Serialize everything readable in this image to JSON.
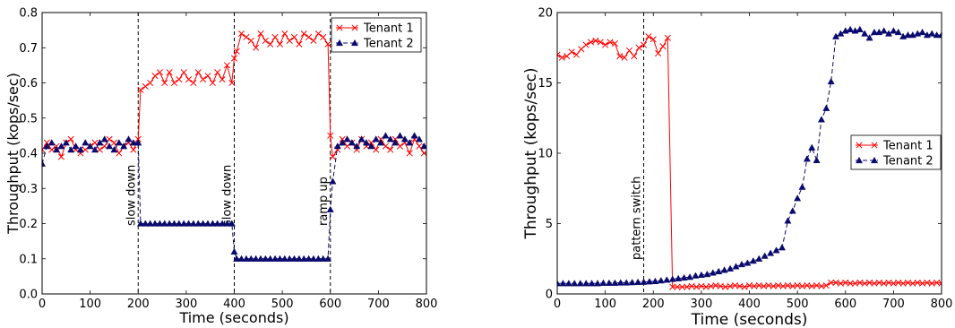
{
  "colors": {
    "tenant1": "#ff0000",
    "tenant2": "#0a0a6e"
  },
  "chart_data": [
    {
      "type": "line",
      "xlabel": "Time (seconds)",
      "ylabel": "Throughput (kops/sec)",
      "xlim": [
        0,
        800
      ],
      "ylim": [
        0,
        0.8
      ],
      "xticks": [
        "0",
        "100",
        "200",
        "300",
        "400",
        "500",
        "600",
        "700",
        "800"
      ],
      "yticks": [
        "0.0",
        "0.1",
        "0.2",
        "0.3",
        "0.4",
        "0.5",
        "0.6",
        "0.7",
        "0.8"
      ],
      "legend_position": "top-right",
      "annotations": [
        {
          "x": 200,
          "text": "slow down"
        },
        {
          "x": 400,
          "text": "slow down"
        },
        {
          "x": 600,
          "text": "ramp up"
        }
      ],
      "series": [
        {
          "name": "Tenant 1",
          "marker": "x",
          "x": [
            0,
            10,
            20,
            30,
            40,
            50,
            60,
            70,
            80,
            90,
            100,
            110,
            120,
            130,
            140,
            150,
            160,
            170,
            180,
            190,
            200,
            205,
            215,
            225,
            235,
            245,
            255,
            265,
            275,
            285,
            295,
            305,
            315,
            325,
            335,
            345,
            355,
            365,
            375,
            385,
            395,
            400,
            405,
            415,
            425,
            435,
            445,
            455,
            465,
            475,
            485,
            495,
            505,
            515,
            525,
            535,
            545,
            555,
            565,
            575,
            585,
            595,
            600,
            605,
            615,
            625,
            635,
            645,
            655,
            665,
            675,
            685,
            695,
            705,
            715,
            725,
            735,
            745,
            755,
            765,
            775,
            785,
            795
          ],
          "values": [
            0.41,
            0.43,
            0.41,
            0.42,
            0.39,
            0.43,
            0.44,
            0.41,
            0.4,
            0.41,
            0.42,
            0.43,
            0.41,
            0.42,
            0.44,
            0.43,
            0.4,
            0.42,
            0.43,
            0.41,
            0.44,
            0.58,
            0.59,
            0.6,
            0.62,
            0.63,
            0.6,
            0.63,
            0.6,
            0.61,
            0.63,
            0.61,
            0.6,
            0.63,
            0.61,
            0.62,
            0.6,
            0.63,
            0.61,
            0.65,
            0.6,
            0.67,
            0.69,
            0.74,
            0.73,
            0.72,
            0.7,
            0.74,
            0.72,
            0.71,
            0.73,
            0.71,
            0.74,
            0.72,
            0.73,
            0.71,
            0.74,
            0.73,
            0.72,
            0.74,
            0.73,
            0.71,
            0.45,
            0.39,
            0.41,
            0.44,
            0.42,
            0.43,
            0.41,
            0.44,
            0.42,
            0.43,
            0.41,
            0.44,
            0.42,
            0.41,
            0.44,
            0.42,
            0.43,
            0.4,
            0.44,
            0.42,
            0.4
          ]
        },
        {
          "name": "Tenant 2",
          "marker": "triangle",
          "x": [
            0,
            10,
            20,
            30,
            40,
            50,
            60,
            70,
            80,
            90,
            100,
            110,
            120,
            130,
            140,
            150,
            160,
            170,
            180,
            190,
            200,
            205,
            215,
            225,
            235,
            245,
            255,
            265,
            275,
            285,
            295,
            305,
            315,
            325,
            335,
            345,
            355,
            365,
            375,
            385,
            395,
            400,
            405,
            415,
            425,
            435,
            445,
            455,
            465,
            475,
            485,
            495,
            505,
            515,
            525,
            535,
            545,
            555,
            565,
            575,
            585,
            595,
            600,
            605,
            615,
            625,
            635,
            645,
            655,
            665,
            675,
            685,
            695,
            705,
            715,
            725,
            735,
            745,
            755,
            765,
            775,
            785,
            795
          ],
          "values": [
            0.37,
            0.42,
            0.43,
            0.41,
            0.42,
            0.43,
            0.41,
            0.42,
            0.41,
            0.43,
            0.42,
            0.41,
            0.43,
            0.44,
            0.42,
            0.41,
            0.43,
            0.42,
            0.44,
            0.43,
            0.43,
            0.2,
            0.2,
            0.2,
            0.2,
            0.2,
            0.2,
            0.2,
            0.2,
            0.2,
            0.2,
            0.2,
            0.2,
            0.2,
            0.2,
            0.2,
            0.2,
            0.2,
            0.2,
            0.2,
            0.2,
            0.12,
            0.1,
            0.1,
            0.1,
            0.1,
            0.1,
            0.1,
            0.1,
            0.1,
            0.1,
            0.1,
            0.1,
            0.1,
            0.1,
            0.1,
            0.1,
            0.1,
            0.1,
            0.1,
            0.1,
            0.1,
            0.24,
            0.32,
            0.42,
            0.43,
            0.44,
            0.43,
            0.42,
            0.44,
            0.43,
            0.42,
            0.44,
            0.43,
            0.45,
            0.44,
            0.43,
            0.45,
            0.44,
            0.43,
            0.45,
            0.44,
            0.42
          ]
        }
      ]
    },
    {
      "type": "line",
      "xlabel": "Time (seconds)",
      "ylabel": "Throughput (kops/sec)",
      "xlim": [
        0,
        800
      ],
      "ylim": [
        0,
        20
      ],
      "xticks": [
        "0",
        "100",
        "200",
        "300",
        "400",
        "500",
        "600",
        "700",
        "800"
      ],
      "yticks": [
        "0",
        "5",
        "10",
        "15",
        "20"
      ],
      "legend_position": "center-right",
      "annotations": [
        {
          "x": 180,
          "text": "pattern switch"
        }
      ],
      "series": [
        {
          "name": "Tenant 1",
          "marker": "x",
          "x": [
            0,
            10,
            20,
            30,
            40,
            50,
            60,
            70,
            80,
            90,
            100,
            110,
            120,
            130,
            140,
            150,
            160,
            170,
            180,
            190,
            200,
            210,
            220,
            230,
            240,
            250,
            260,
            270,
            280,
            290,
            300,
            310,
            320,
            330,
            340,
            350,
            360,
            370,
            380,
            390,
            400,
            410,
            420,
            430,
            440,
            450,
            460,
            470,
            480,
            490,
            500,
            510,
            520,
            530,
            540,
            550,
            560,
            570,
            580,
            590,
            600,
            610,
            620,
            630,
            640,
            650,
            660,
            670,
            680,
            690,
            700,
            710,
            720,
            730,
            740,
            750,
            760,
            770,
            780,
            790,
            800
          ],
          "values": [
            17.0,
            16.8,
            16.9,
            17.2,
            17.0,
            17.4,
            17.7,
            17.9,
            18.0,
            17.9,
            17.7,
            17.9,
            17.8,
            16.9,
            16.8,
            17.3,
            16.9,
            17.5,
            17.7,
            18.3,
            18.1,
            17.1,
            17.6,
            18.2,
            0.5,
            0.5,
            0.5,
            0.5,
            0.55,
            0.5,
            0.55,
            0.5,
            0.55,
            0.6,
            0.55,
            0.5,
            0.55,
            0.6,
            0.55,
            0.5,
            0.6,
            0.55,
            0.6,
            0.55,
            0.6,
            0.55,
            0.6,
            0.55,
            0.6,
            0.55,
            0.6,
            0.55,
            0.6,
            0.55,
            0.6,
            0.55,
            0.6,
            0.8,
            0.8,
            0.75,
            0.8,
            0.75,
            0.75,
            0.8,
            0.75,
            0.8,
            0.75,
            0.8,
            0.75,
            0.8,
            0.75,
            0.8,
            0.75,
            0.8,
            0.75,
            0.8,
            0.75,
            0.8,
            0.75,
            0.8,
            0.75
          ]
        },
        {
          "name": "Tenant 2",
          "marker": "triangle",
          "x": [
            0,
            12,
            24,
            36,
            48,
            60,
            72,
            84,
            96,
            108,
            120,
            132,
            144,
            156,
            168,
            180,
            192,
            204,
            216,
            228,
            240,
            252,
            264,
            276,
            288,
            300,
            312,
            324,
            336,
            348,
            360,
            372,
            384,
            396,
            408,
            420,
            432,
            444,
            456,
            468,
            480,
            490,
            500,
            510,
            520,
            530,
            540,
            550,
            560,
            570,
            580,
            590,
            600,
            610,
            620,
            630,
            640,
            650,
            660,
            670,
            680,
            690,
            700,
            710,
            720,
            730,
            740,
            750,
            760,
            770,
            780,
            790,
            800
          ],
          "values": [
            0.75,
            0.75,
            0.75,
            0.75,
            0.75,
            0.75,
            0.75,
            0.75,
            0.78,
            0.78,
            0.78,
            0.8,
            0.8,
            0.82,
            0.84,
            0.85,
            0.88,
            0.9,
            0.95,
            1.0,
            1.05,
            1.1,
            1.15,
            1.2,
            1.3,
            1.35,
            1.4,
            1.5,
            1.6,
            1.7,
            1.8,
            1.95,
            2.1,
            2.2,
            2.35,
            2.5,
            2.7,
            2.9,
            3.1,
            3.3,
            5.2,
            5.9,
            6.8,
            7.6,
            9.6,
            10.4,
            9.5,
            12.4,
            13.2,
            15.1,
            18.3,
            18.5,
            18.7,
            18.8,
            18.7,
            18.8,
            18.5,
            18.2,
            18.6,
            18.6,
            18.7,
            18.5,
            18.7,
            18.6,
            18.3,
            18.4,
            18.4,
            18.5,
            18.6,
            18.4,
            18.5,
            18.4,
            18.4
          ]
        }
      ]
    }
  ]
}
